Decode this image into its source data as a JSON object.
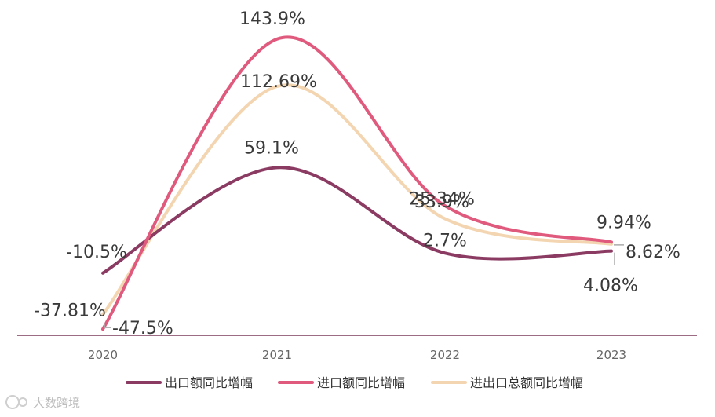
{
  "chart_data": {
    "type": "line",
    "categories": [
      "2020",
      "2021",
      "2022",
      "2023"
    ],
    "ylim": [
      -50,
      150
    ],
    "series": [
      {
        "name": "出口额同比增幅",
        "values": [
          -10.5,
          59.1,
          2.7,
          4.08
        ],
        "labels": [
          "-10.5%",
          "59.1%",
          "2.7%",
          "4.08%"
        ],
        "color": "#8b3a62"
      },
      {
        "name": "进口额同比增幅",
        "values": [
          -47.5,
          143.9,
          33.9,
          9.94
        ],
        "labels": [
          "-47.5%",
          "143.9%",
          "33.9%",
          "9.94%"
        ],
        "color": "#e05a7e"
      },
      {
        "name": "进出口总额同比增幅",
        "values": [
          -37.81,
          112.69,
          25.34,
          8.62
        ],
        "labels": [
          "-37.81%",
          "112.69%",
          "25.34%",
          "8.62%"
        ],
        "color": "#f3d6b1"
      }
    ],
    "legend_position": "bottom-center",
    "grid": false
  },
  "watermark": {
    "text": "大数跨境"
  }
}
